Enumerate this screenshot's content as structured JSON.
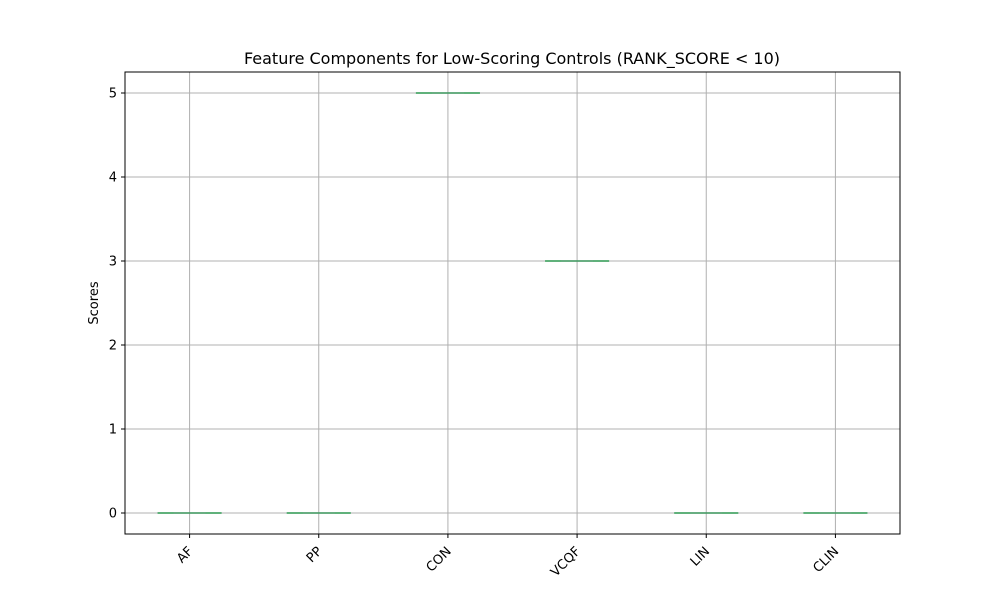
{
  "chart_data": {
    "type": "box",
    "title": "Feature Components for Low-Scoring Controls (RANK_SCORE < 10)",
    "xlabel": "",
    "ylabel": "Scores",
    "categories": [
      "AF",
      "PP",
      "CON",
      "VCQF",
      "LIN",
      "CLIN"
    ],
    "values": [
      0,
      0,
      5,
      3,
      0,
      0
    ],
    "yticks": [
      0,
      1,
      2,
      3,
      4,
      5
    ],
    "ylim": [
      -0.25,
      5.25
    ],
    "grid": true,
    "box_color": "#4c9a6a",
    "median_color": "#3a9f5c",
    "tick_rotation": -45
  }
}
